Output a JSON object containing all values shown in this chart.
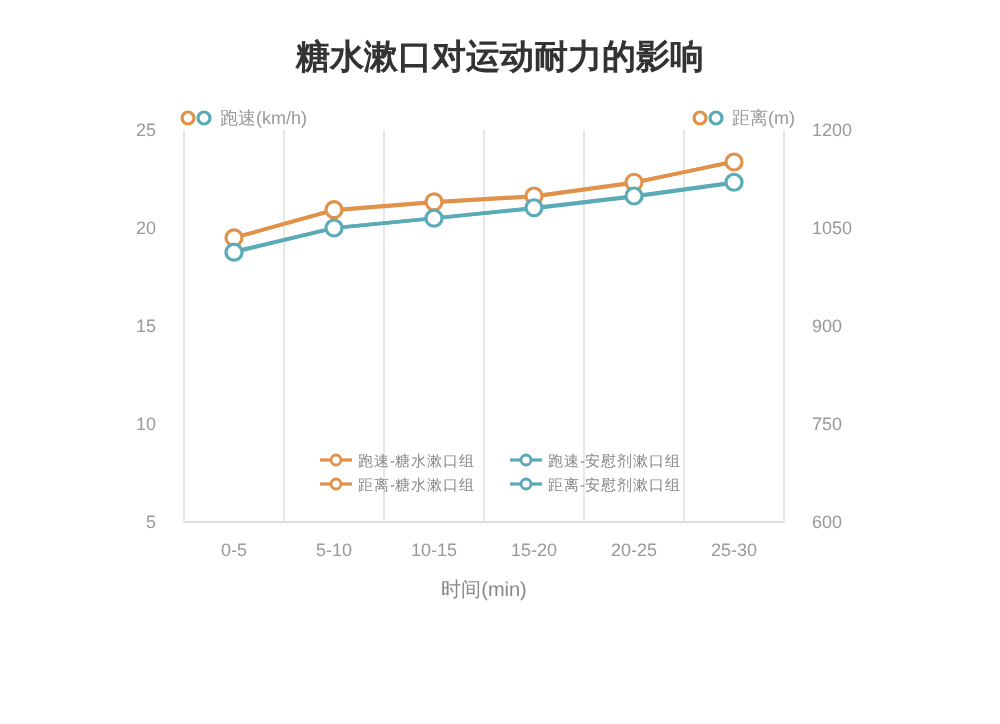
{
  "chart_data": {
    "type": "line",
    "title": "糖水漱口对运动耐力的影响",
    "xlabel": "时间(min)",
    "ylabel": "跑速(km/h)",
    "y2label": "距离(m)",
    "categories": [
      "0-5",
      "5-10",
      "10-15",
      "15-20",
      "20-25",
      "25-30"
    ],
    "ylim": [
      5,
      25
    ],
    "yticks": [
      5,
      10,
      15,
      20,
      25
    ],
    "y2lim": [
      600,
      1200
    ],
    "y2ticks": [
      600,
      750,
      900,
      1050,
      1200
    ],
    "grid": "x",
    "legend": "bottom",
    "marker": "circle",
    "line_style": "solid",
    "series": [
      {
        "name": "跑速-糖水漱口组",
        "color": "#e0924a",
        "values": [
          19.5,
          20.9,
          21.3,
          21.6,
          22.3,
          23.4
        ]
      },
      {
        "name": "跑速-安慰剂漱口组",
        "color": "#5aaab8",
        "values": [
          18.8,
          20.0,
          20.5,
          21.0,
          21.6,
          22.3
        ]
      },
      {
        "name": "距离-糖水漱口组",
        "color": "#e0924a",
        "axis": "y2",
        "values": [
          1035,
          1078,
          1090,
          1099,
          1120,
          1151
        ]
      },
      {
        "name": "距离-安慰剂漱口组",
        "color": "#5aaab8",
        "axis": "y2",
        "values": [
          1013,
          1050,
          1065,
          1081,
          1099,
          1120
        ]
      }
    ]
  }
}
